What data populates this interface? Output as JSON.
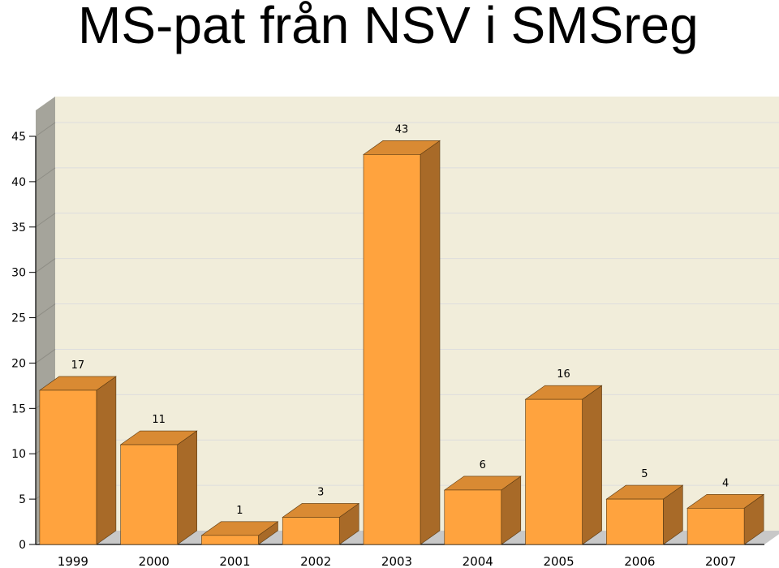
{
  "title": "MS-pat från NSV i SMSreg",
  "colors": {
    "bar_front": "#FFA33E",
    "bar_top": "#D98A33",
    "bar_side": "#A86A28",
    "plot_background": "#F1EDDA",
    "left_wall": "#A5A49B",
    "floor": "#C8C8C8",
    "gridline": "#DDDDDD"
  },
  "chart_data": {
    "type": "bar",
    "title": "MS-pat från NSV i SMSreg",
    "categories": [
      "1999",
      "2000",
      "2001",
      "2002",
      "2003",
      "2004",
      "2005",
      "2006",
      "2007"
    ],
    "values": [
      17,
      11,
      1,
      3,
      43,
      6,
      16,
      5,
      4
    ],
    "data_labels": [
      "17",
      "11",
      "1",
      "3",
      "43",
      "6",
      "16",
      "5",
      "4"
    ],
    "ylim": [
      0,
      45
    ],
    "yticks": [
      0,
      5,
      10,
      15,
      20,
      25,
      30,
      35,
      40,
      45
    ],
    "ytick_labels": [
      "0",
      "5",
      "10",
      "15",
      "20",
      "25",
      "30",
      "35",
      "40",
      "45"
    ],
    "xlabel": "",
    "ylabel": "",
    "grid": true,
    "three_d": true
  }
}
